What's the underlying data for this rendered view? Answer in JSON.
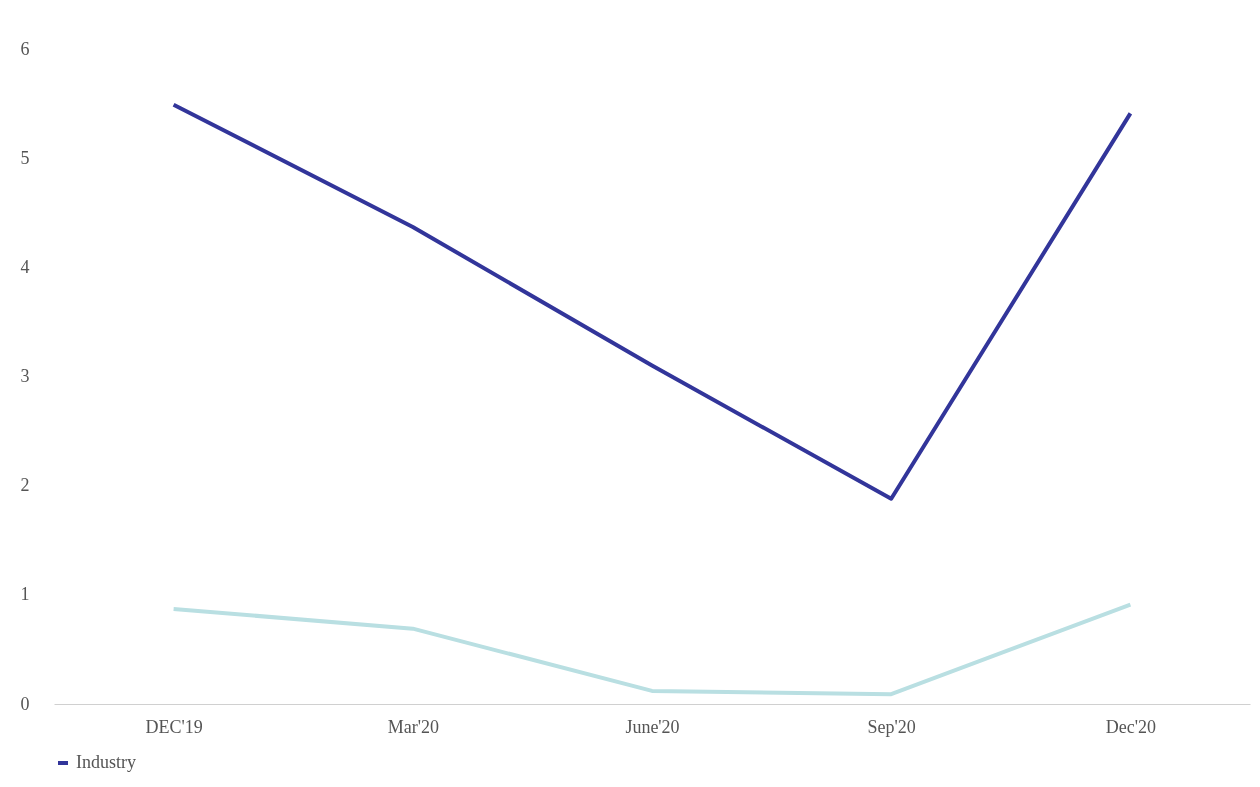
{
  "chart_data": {
    "type": "line",
    "categories": [
      "DEC'19",
      "Mar'20",
      "June'20",
      "Sep'20",
      "Dec'20"
    ],
    "series": [
      {
        "color": "#b9dfe2",
        "values": [
          0.87,
          0.69,
          0.12,
          0.09,
          0.91
        ]
      },
      {
        "name": "Industry",
        "color": "#32359a",
        "values": [
          5.49,
          4.37,
          3.1,
          1.88,
          5.41
        ]
      }
    ],
    "ylim": [
      0,
      6
    ],
    "yticks": [
      0,
      1,
      2,
      3,
      4,
      5,
      6
    ],
    "grid": false,
    "legend": "bottom",
    "marker": "none",
    "line_style": "solid"
  }
}
